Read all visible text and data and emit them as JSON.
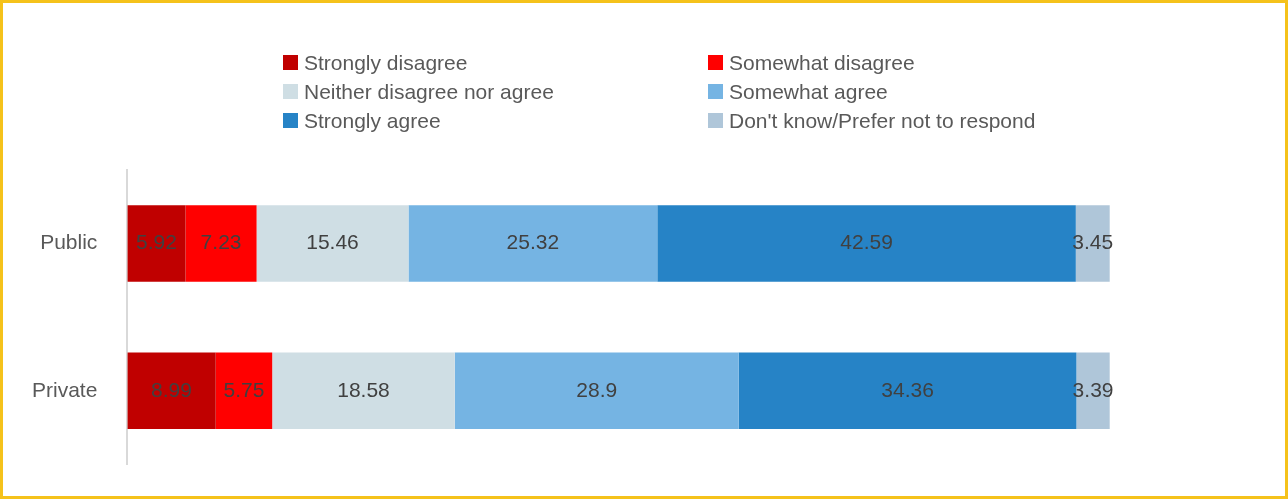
{
  "chart_data": {
    "type": "bar",
    "orientation": "horizontal",
    "stacked": true,
    "categories": [
      "Public",
      "Private"
    ],
    "series": [
      {
        "name": "Strongly disagree",
        "color": "#c00000",
        "values": [
          5.92,
          8.99
        ]
      },
      {
        "name": "Somewhat disagree",
        "color": "#ff0000",
        "values": [
          7.23,
          5.75
        ]
      },
      {
        "name": "Neither disagree nor agree",
        "color": "#cfdee4",
        "values": [
          15.46,
          18.58
        ]
      },
      {
        "name": "Somewhat agree",
        "color": "#75b4e3",
        "values": [
          25.32,
          28.9
        ]
      },
      {
        "name": "Strongly agree",
        "color": "#2683c6",
        "values": [
          42.59,
          34.36
        ]
      },
      {
        "name": "Don't know/Prefer not to respond",
        "color": "#afc6d9",
        "values": [
          3.45,
          3.39
        ]
      }
    ],
    "data_labels": true,
    "legend": "top",
    "tick_labels": "y"
  }
}
